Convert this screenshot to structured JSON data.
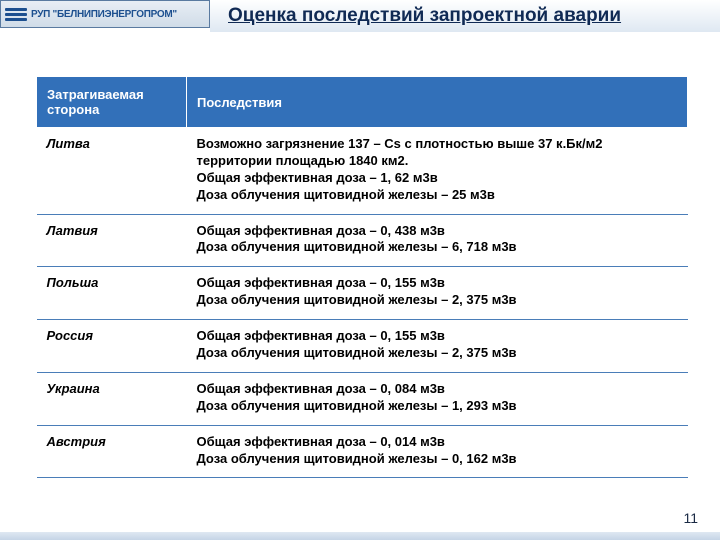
{
  "logo_text": "РУП \"БЕЛНИПИЭНЕРГОПРОМ\"",
  "title": "Оценка последствий запроектной аварии",
  "columns": [
    "Затрагиваемая сторона",
    "Последствия"
  ],
  "rows": [
    {
      "side": "Литва",
      "effect": "Возможно загрязнение 137 – Cs с плотностью выше 37 к.Бк/м2 территории площадью 1840 км2.\nОбщая эффективная доза – 1, 62 м3в\nДоза облучения щитовидной железы – 25 м3в"
    },
    {
      "side": "Латвия",
      "effect": "Общая эффективная доза – 0, 438 м3в\nДоза облучения щитовидной железы – 6, 718 м3в"
    },
    {
      "side": "Польша",
      "effect": "Общая эффективная доза – 0, 155 м3в\nДоза облучения щитовидной железы – 2, 375 м3в"
    },
    {
      "side": "Россия",
      "effect": "Общая эффективная доза – 0, 155 м3в\nДоза облучения щитовидной железы – 2, 375 м3в"
    },
    {
      "side": "Украина",
      "effect": "Общая эффективная доза – 0, 084 м3в\nДоза облучения щитовидной железы – 1, 293 м3в"
    },
    {
      "side": "Австрия",
      "effect": "Общая эффективная доза – 0, 014 м3в\nДоза облучения щитовидной железы – 0, 162 м3в"
    }
  ],
  "page_number": "11",
  "colors": {
    "header_bg": "#3270b9",
    "header_text": "#ffffff",
    "row_border": "#4a7db8",
    "title_color": "#102a54"
  },
  "fonts": {
    "title_pt": 19,
    "table_pt": 13
  }
}
